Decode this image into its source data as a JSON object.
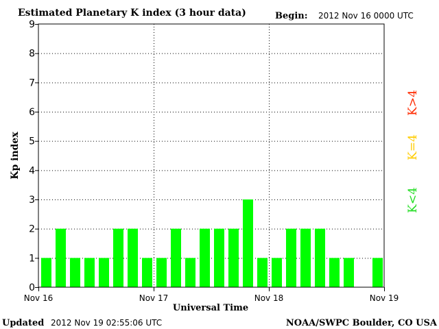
{
  "header": {
    "title": "Estimated Planetary K index (3 hour data)",
    "begin_label": "Begin:",
    "begin_value": "2012 Nov 16 0000 UTC"
  },
  "footer": {
    "updated_label": "Updated",
    "updated_value": "2012 Nov 19 02:55:06 UTC",
    "source": "NOAA/SWPC Boulder, CO USA"
  },
  "legend": {
    "high": "K>4",
    "mid": "K=4",
    "low": "K<4"
  },
  "colors": {
    "bar": "#00ff00",
    "legend_high": "#ff2a00",
    "legend_mid": "#ffcc00",
    "legend_low": "#22dd22",
    "axis": "#000000",
    "grid": "#000000"
  },
  "chart_data": {
    "type": "bar",
    "title": "Estimated Planetary K index (3 hour data)",
    "xlabel": "Universal Time",
    "ylabel": "Kp index",
    "ylim": [
      0,
      9
    ],
    "yticks": [
      "0",
      "1",
      "2",
      "3",
      "4",
      "5",
      "6",
      "7",
      "8",
      "9"
    ],
    "xticks": [
      "Nov 16",
      "Nov 17",
      "Nov 18",
      "Nov 19"
    ],
    "grid": true,
    "interval_hours": 3,
    "values": [
      1,
      2,
      1,
      1,
      1,
      2,
      2,
      1,
      1,
      2,
      1,
      2,
      2,
      2,
      3,
      1,
      1,
      2,
      2,
      2,
      1,
      1,
      null,
      1
    ]
  }
}
